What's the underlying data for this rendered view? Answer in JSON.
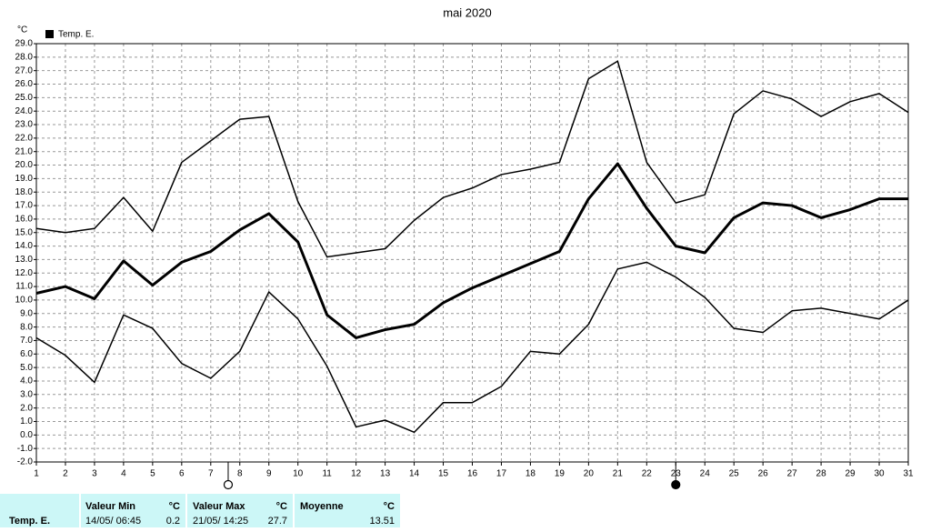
{
  "chart_data": {
    "type": "line",
    "title": "mai 2020",
    "ylabel": "°C",
    "legend": {
      "name": "Temp. E.",
      "color": "#000000"
    },
    "x": [
      1,
      2,
      3,
      4,
      5,
      6,
      7,
      8,
      9,
      10,
      11,
      12,
      13,
      14,
      15,
      16,
      17,
      18,
      19,
      20,
      21,
      22,
      23,
      24,
      25,
      26,
      27,
      28,
      29,
      30,
      31
    ],
    "xlim": [
      1,
      31
    ],
    "xticks": [
      1,
      2,
      3,
      4,
      5,
      6,
      7,
      8,
      9,
      10,
      11,
      12,
      13,
      14,
      15,
      16,
      17,
      18,
      19,
      20,
      21,
      22,
      23,
      24,
      25,
      26,
      27,
      28,
      29,
      30,
      31
    ],
    "ylim": [
      -2,
      29
    ],
    "yticks": [
      {
        "value": -2,
        "label": "-2.0"
      },
      {
        "value": -1,
        "label": "-1.0"
      },
      {
        "value": 0,
        "label": "0.0"
      },
      {
        "value": 1,
        "label": "1.0"
      },
      {
        "value": 2,
        "label": "2.0"
      },
      {
        "value": 3,
        "label": "3.0"
      },
      {
        "value": 4,
        "label": "4.0"
      },
      {
        "value": 5,
        "label": "5.0"
      },
      {
        "value": 6,
        "label": "6.0"
      },
      {
        "value": 7,
        "label": "7.0"
      },
      {
        "value": 8,
        "label": "8.0"
      },
      {
        "value": 9,
        "label": "9.0"
      },
      {
        "value": 10,
        "label": "10.0"
      },
      {
        "value": 11,
        "label": "11.0"
      },
      {
        "value": 12,
        "label": "12.0"
      },
      {
        "value": 13,
        "label": "13.0"
      },
      {
        "value": 14,
        "label": "14.0"
      },
      {
        "value": 15,
        "label": "15.0"
      },
      {
        "value": 16,
        "label": "16.0"
      },
      {
        "value": 17,
        "label": "17.0"
      },
      {
        "value": 18,
        "label": "18.0"
      },
      {
        "value": 19,
        "label": "19.0"
      },
      {
        "value": 20,
        "label": "20.0"
      },
      {
        "value": 21,
        "label": "21.0"
      },
      {
        "value": 22,
        "label": "22.0"
      },
      {
        "value": 23,
        "label": "23.0"
      },
      {
        "value": 24,
        "label": "24.0"
      },
      {
        "value": 25,
        "label": "25.0"
      },
      {
        "value": 26,
        "label": "26.0"
      },
      {
        "value": 27,
        "label": "27.0"
      },
      {
        "value": 28,
        "label": "28.0"
      },
      {
        "value": 29,
        "label": "29.0"
      }
    ],
    "grid": true,
    "series": [
      {
        "color": "#000000",
        "width": 1.5,
        "values": [
          15.3,
          15.0,
          15.3,
          17.6,
          15.1,
          20.2,
          21.8,
          23.4,
          23.6,
          17.3,
          13.2,
          13.5,
          13.8,
          15.9,
          17.6,
          18.3,
          19.3,
          19.7,
          20.2,
          26.4,
          27.7,
          20.2,
          17.2,
          17.8,
          23.8,
          25.5,
          24.9,
          23.6,
          24.7,
          25.3,
          23.9
        ]
      },
      {
        "color": "#000000",
        "width": 3,
        "values": [
          10.5,
          11.0,
          10.1,
          12.9,
          11.1,
          12.8,
          13.6,
          15.2,
          16.4,
          14.3,
          8.9,
          7.2,
          7.8,
          8.2,
          9.8,
          10.9,
          11.8,
          12.7,
          13.6,
          17.5,
          20.1,
          16.8,
          14.0,
          13.5,
          16.1,
          17.2,
          17.0,
          16.1,
          16.7,
          17.5,
          17.5
        ]
      },
      {
        "color": "#000000",
        "width": 1.5,
        "values": [
          7.2,
          5.9,
          3.9,
          8.9,
          7.9,
          5.3,
          4.2,
          6.2,
          10.6,
          8.6,
          5.1,
          0.6,
          1.1,
          0.2,
          2.4,
          2.4,
          3.6,
          6.2,
          6.0,
          8.2,
          12.3,
          12.8,
          11.7,
          10.2,
          7.9,
          7.6,
          9.2,
          9.4,
          9.0,
          8.6,
          10.0
        ]
      }
    ],
    "markers": [
      {
        "x": 7.6,
        "filled": false
      },
      {
        "x": 23,
        "filled": true
      }
    ]
  },
  "stats": {
    "row_label": "Temp. E.",
    "headers": [
      "Valeur Min",
      "°C",
      "Valeur Max",
      "°C",
      "Moyenne",
      "°C"
    ],
    "values": [
      "14/05/ 06:45",
      "0.2",
      "21/05/ 14:25",
      "27.7",
      "",
      "13.51"
    ]
  }
}
